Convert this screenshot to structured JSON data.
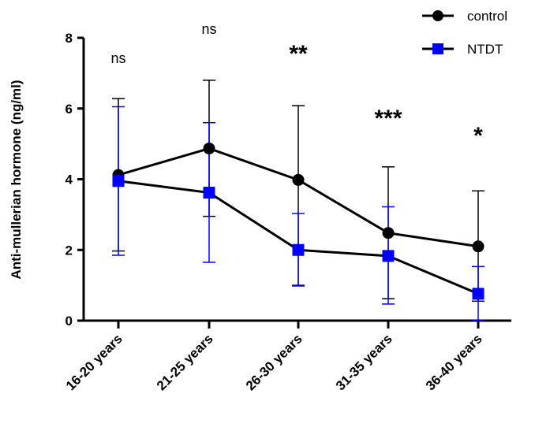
{
  "chart_data": {
    "type": "line",
    "title": "",
    "xlabel": "",
    "ylabel": "Anti-mullerian hormone (ng/ml)",
    "ylim": [
      0,
      8
    ],
    "yticks": [
      0,
      2,
      4,
      6,
      8
    ],
    "categories": [
      "16-20 years",
      "21-25 years",
      "26-30 years",
      "31-35 years",
      "36-40 years"
    ],
    "series": [
      {
        "name": "control",
        "color": "#000000",
        "marker": "circle",
        "values": [
          4.12,
          4.87,
          3.98,
          2.48,
          2.1
        ],
        "err_low": [
          1.97,
          2.95,
          1.0,
          0.62,
          0.55
        ],
        "err_high": [
          6.28,
          6.8,
          6.08,
          4.35,
          3.67
        ]
      },
      {
        "name": "NTDT",
        "color": "#0000ff",
        "marker": "square",
        "values": [
          3.95,
          3.62,
          2.0,
          1.83,
          0.76
        ],
        "err_low": [
          1.85,
          1.65,
          0.98,
          0.47,
          0.0
        ],
        "err_high": [
          6.05,
          5.6,
          3.03,
          3.22,
          1.53
        ]
      }
    ],
    "significance": [
      "ns",
      "ns",
      "**",
      "***",
      "*"
    ],
    "legend": {
      "position": "top-right",
      "entries": [
        "control",
        "NTDT"
      ]
    }
  }
}
